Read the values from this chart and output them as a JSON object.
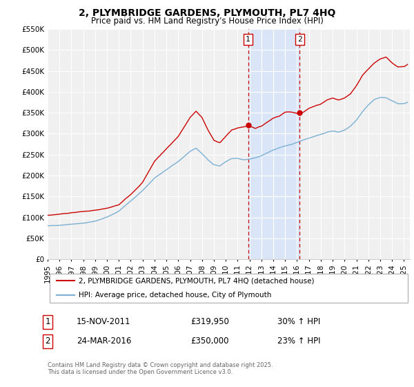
{
  "title": "2, PLYMBRIDGE GARDENS, PLYMOUTH, PL7 4HQ",
  "subtitle": "Price paid vs. HM Land Registry's House Price Index (HPI)",
  "legend_line1": "2, PLYMBRIDGE GARDENS, PLYMOUTH, PL7 4HQ (detached house)",
  "legend_line2": "HPI: Average price, detached house, City of Plymouth",
  "footer": "Contains HM Land Registry data © Crown copyright and database right 2025.\nThis data is licensed under the Open Government Licence v3.0.",
  "red_color": "#cc0000",
  "blue_color": "#7ab0d4",
  "annotation1_date_num": 2011.88,
  "annotation1_value": 319950,
  "annotation1_label": "1",
  "annotation1_date_str": "15-NOV-2011",
  "annotation1_price": "£319,950",
  "annotation1_hpi": "30% ↑ HPI",
  "annotation2_date_num": 2016.23,
  "annotation2_value": 350000,
  "annotation2_label": "2",
  "annotation2_date_str": "24-MAR-2016",
  "annotation2_price": "£350,000",
  "annotation2_hpi": "23% ↑ HPI",
  "ylim_min": 0,
  "ylim_max": 550000,
  "xlim_min": 1995,
  "xlim_max": 2025.5,
  "yticks": [
    0,
    50000,
    100000,
    150000,
    200000,
    250000,
    300000,
    350000,
    400000,
    450000,
    500000,
    550000
  ],
  "ytick_labels": [
    "£0",
    "£50K",
    "£100K",
    "£150K",
    "£200K",
    "£250K",
    "£300K",
    "£350K",
    "£400K",
    "£450K",
    "£500K",
    "£550K"
  ],
  "xticks": [
    1995,
    1996,
    1997,
    1998,
    1999,
    2000,
    2001,
    2002,
    2003,
    2004,
    2005,
    2006,
    2007,
    2008,
    2009,
    2010,
    2011,
    2012,
    2013,
    2014,
    2015,
    2016,
    2017,
    2018,
    2019,
    2020,
    2021,
    2022,
    2023,
    2024,
    2025
  ],
  "bg_color": "#f0f0f0",
  "grid_color": "#ffffff"
}
